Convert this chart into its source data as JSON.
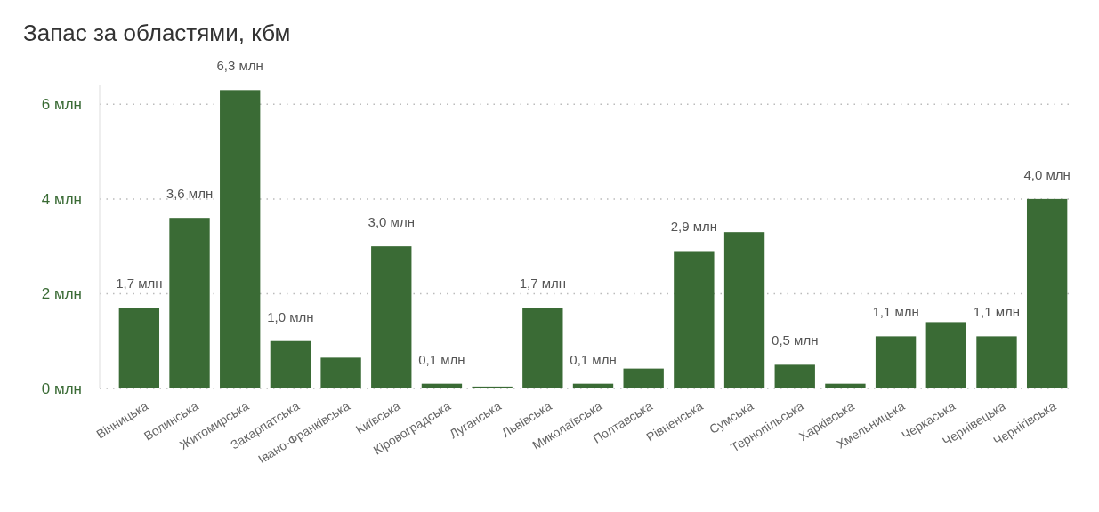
{
  "chart_data": {
    "type": "bar",
    "title": "Запас за областями, кбм",
    "categories": [
      "Вінницька",
      "Волинська",
      "Житомирська",
      "Закарпатська",
      "Івано-Франківська",
      "Київська",
      "Кіровоградська",
      "Луганська",
      "Львівська",
      "Миколаївська",
      "Полтавська",
      "Рівненська",
      "Сумська",
      "Тернопільська",
      "Харківська",
      "Хмельницька",
      "Черкаська",
      "Чернівецька",
      "Чернігівська"
    ],
    "values": [
      1.7,
      3.6,
      6.3,
      1.0,
      0.65,
      3.0,
      0.1,
      0.04,
      1.7,
      0.1,
      0.42,
      2.9,
      3.3,
      0.5,
      0.1,
      1.1,
      1.4,
      1.1,
      4.0
    ],
    "value_labels": [
      "1,7 млн",
      "3,6 млн",
      "6,3 млн",
      "1,0 млн",
      null,
      "3,0 млн",
      "0,1 млн",
      null,
      "1,7 млн",
      "0,1 млн",
      null,
      "2,9 млн",
      null,
      "0,5 млн",
      null,
      "1,1 млн",
      null,
      "1,1 млн",
      "4,0 млн"
    ],
    "color": "#3a6b35",
    "ylim": [
      0,
      6.4
    ],
    "yticks": [
      {
        "value": 0,
        "label": "0 млн"
      },
      {
        "value": 2,
        "label": "2 млн"
      },
      {
        "value": 4,
        "label": "4 млн"
      },
      {
        "value": 6,
        "label": "6 млн"
      }
    ],
    "grid": "y"
  }
}
